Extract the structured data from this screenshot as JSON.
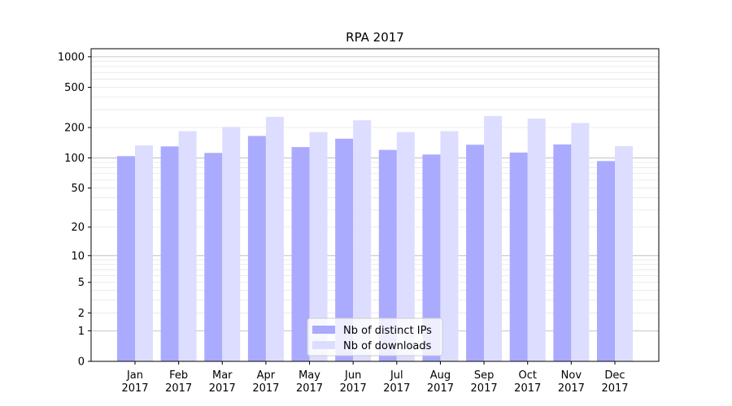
{
  "chart_data": {
    "type": "bar",
    "title": "RPA 2017",
    "xlabel": "",
    "ylabel": "",
    "yscale": "log(1+y)",
    "ylim": [
      0,
      1200
    ],
    "yticks": [
      0,
      1,
      2,
      5,
      10,
      20,
      50,
      100,
      200,
      500,
      1000
    ],
    "grid": "horizontal",
    "legend_position": "bottom-center",
    "categories": [
      [
        "Jan",
        "2017"
      ],
      [
        "Feb",
        "2017"
      ],
      [
        "Mar",
        "2017"
      ],
      [
        "Apr",
        "2017"
      ],
      [
        "May",
        "2017"
      ],
      [
        "Jun",
        "2017"
      ],
      [
        "Jul",
        "2017"
      ],
      [
        "Aug",
        "2017"
      ],
      [
        "Sep",
        "2017"
      ],
      [
        "Oct",
        "2017"
      ],
      [
        "Nov",
        "2017"
      ],
      [
        "Dec",
        "2017"
      ]
    ],
    "series": [
      {
        "name": "Nb of distinct IPs",
        "color": "#aaaaff",
        "values": [
          104,
          130,
          112,
          165,
          128,
          155,
          120,
          108,
          135,
          113,
          136,
          93
        ]
      },
      {
        "name": "Nb of downloads",
        "color": "#ddddff",
        "values": [
          133,
          184,
          203,
          255,
          180,
          236,
          180,
          184,
          260,
          245,
          222,
          131
        ]
      }
    ]
  }
}
